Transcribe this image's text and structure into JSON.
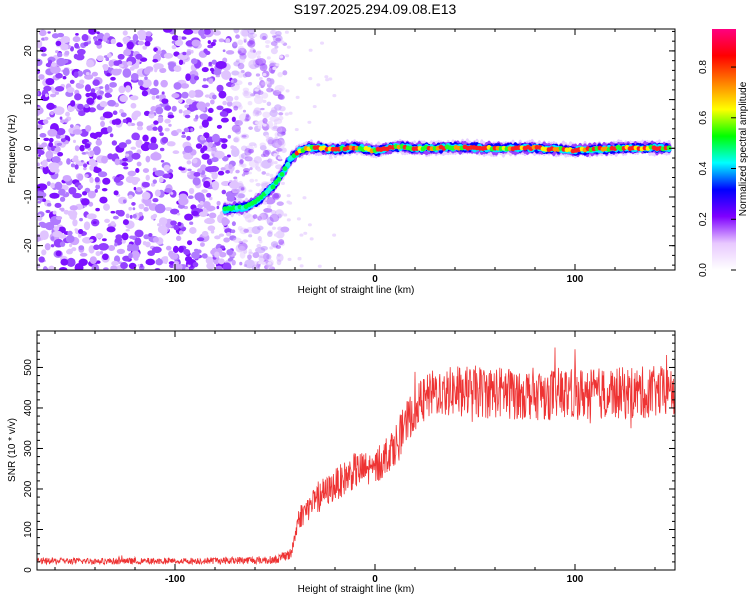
{
  "title": "S197.2025.294.09.08.E13",
  "chart_data": [
    {
      "type": "heatmap",
      "name": "spectrogram",
      "xlabel": "Height of straight line (km)",
      "ylabel": "Frequency (Hz)",
      "xlim": [
        -169,
        150
      ],
      "ylim": [
        -25,
        24.5
      ],
      "xticks": [
        -100,
        0,
        100
      ],
      "yticks": [
        -20,
        -10,
        0,
        10,
        20
      ],
      "colorbar": {
        "label": "Normalized spectral amplitude",
        "range": [
          0,
          0.95
        ],
        "ticks": [
          0.0,
          0.2,
          0.4,
          0.6,
          0.8
        ],
        "colors": [
          "#ffffff",
          "#e8c8ff",
          "#7f00ff",
          "#0000ff",
          "#00ffff",
          "#00ff00",
          "#ffff00",
          "#ff8000",
          "#ff0000",
          "#ff0080"
        ]
      },
      "ridge": {
        "x": [
          -75,
          -70,
          -66,
          -62,
          -58,
          -54,
          -50,
          -46,
          -42,
          -38,
          -34,
          -28,
          -20,
          -10,
          0,
          10,
          20,
          40,
          60,
          80,
          100,
          120,
          140,
          148
        ],
        "freq": [
          -12.5,
          -12.3,
          -12.2,
          -11.5,
          -10.5,
          -9.0,
          -7.5,
          -5.0,
          -2.0,
          -0.6,
          0.0,
          0.1,
          -0.3,
          0.2,
          -0.5,
          0.3,
          0.0,
          0.2,
          0.0,
          0.1,
          -0.4,
          0.0,
          0.1,
          0.0
        ]
      },
      "noise_region_x": [
        -169,
        -55
      ]
    },
    {
      "type": "line",
      "name": "snr",
      "xlabel": "Height of straight line (km)",
      "ylabel": "SNR (10 * v/v)",
      "xlim": [
        -169,
        150
      ],
      "ylim": [
        0,
        590
      ],
      "xticks": [
        -100,
        0,
        100
      ],
      "yticks": [
        0,
        100,
        200,
        300,
        400,
        500
      ],
      "color": "#ee3333",
      "trend": {
        "x": [
          -169,
          -100,
          -50,
          -42,
          -38,
          -30,
          -20,
          -10,
          0,
          10,
          20,
          30,
          50,
          80,
          110,
          150
        ],
        "y": [
          22,
          22,
          25,
          40,
          130,
          170,
          210,
          245,
          250,
          310,
          400,
          440,
          440,
          435,
          435,
          440
        ]
      },
      "noise_amplitude": [
        8,
        8,
        10,
        14,
        30,
        35,
        40,
        45,
        45,
        50,
        55,
        60,
        65,
        65,
        65,
        65
      ]
    }
  ]
}
